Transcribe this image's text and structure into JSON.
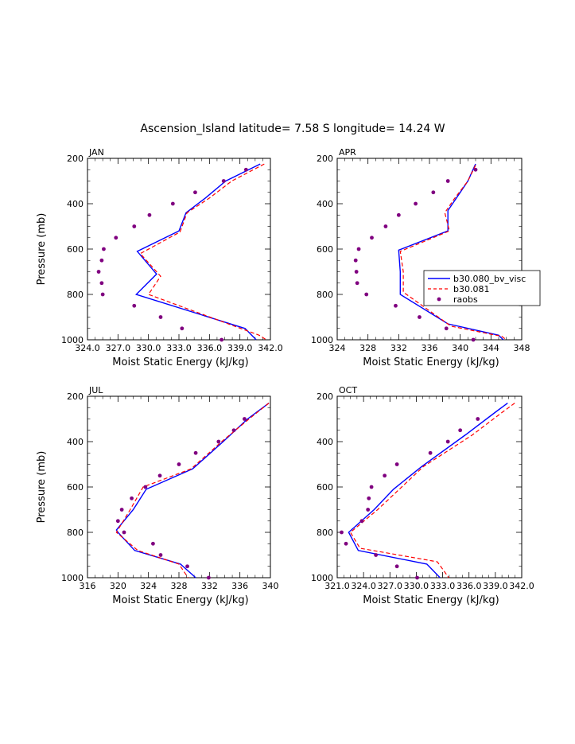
{
  "figure_title": "Ascension_Island  latitude= 7.58 S longitude= 14.24 W",
  "legend": [
    {
      "label": "b30.080_bv_visc",
      "color": "#0000ff",
      "style": "solid"
    },
    {
      "label": "b30.081",
      "color": "#ff0000",
      "style": "dashed"
    },
    {
      "label": "raobs",
      "color": "#800080",
      "style": "dot"
    }
  ],
  "chart_data": [
    {
      "type": "line",
      "title": "JAN",
      "xlabel": "Moist Static Energy (kJ/kg)",
      "ylabel": "Pressure (mb)",
      "xlim": [
        324.0,
        342.0
      ],
      "ylim": [
        1000,
        200
      ],
      "xticks": [
        "324.0",
        "327.0",
        "330.0",
        "333.0",
        "336.0",
        "339.0",
        "342.0"
      ],
      "yticks": [
        "200",
        "400",
        "600",
        "800",
        "1000"
      ],
      "series": [
        {
          "name": "b30.080_bv_visc",
          "pressure": [
            225,
            300,
            375,
            440,
            520,
            610,
            710,
            800,
            950,
            1000
          ],
          "values": [
            341.0,
            337.6,
            335.6,
            333.7,
            333.0,
            328.9,
            330.8,
            328.8,
            339.5,
            340.6
          ]
        },
        {
          "name": "b30.081",
          "pressure": [
            225,
            300,
            375,
            440,
            525,
            620,
            720,
            800,
            980,
            1000
          ],
          "values": [
            341.4,
            338.2,
            336.0,
            333.8,
            333.1,
            329.2,
            331.2,
            330.0,
            340.9,
            341.6
          ]
        },
        {
          "name": "raobs",
          "pressure": [
            250,
            300,
            350,
            400,
            450,
            500,
            550,
            600,
            650,
            700,
            750,
            800,
            850,
            900,
            950,
            1000
          ],
          "values": [
            339.6,
            337.4,
            334.6,
            332.4,
            330.1,
            328.6,
            326.8,
            325.6,
            325.4,
            325.1,
            325.4,
            325.5,
            328.6,
            331.2,
            333.3,
            337.2
          ]
        }
      ]
    },
    {
      "type": "line",
      "title": "APR",
      "xlabel": "Moist Static Energy (kJ/kg)",
      "ylabel": "",
      "xlim": [
        324,
        348
      ],
      "ylim": [
        1000,
        200
      ],
      "xticks": [
        "324",
        "328",
        "332",
        "336",
        "340",
        "344",
        "348"
      ],
      "yticks": [
        "200",
        "400",
        "600",
        "800",
        "1000"
      ],
      "series": [
        {
          "name": "b30.080_bv_visc",
          "pressure": [
            225,
            300,
            380,
            430,
            520,
            605,
            700,
            800,
            930,
            980,
            1000
          ],
          "values": [
            342.0,
            341.0,
            339.4,
            338.4,
            338.4,
            332.0,
            332.2,
            332.2,
            338.4,
            345.0,
            345.6
          ]
        },
        {
          "name": "b30.081",
          "pressure": [
            230,
            300,
            380,
            440,
            520,
            610,
            700,
            790,
            940,
            985,
            1000
          ],
          "values": [
            342.0,
            341.0,
            339.2,
            338.0,
            338.6,
            332.2,
            332.6,
            332.6,
            338.8,
            345.4,
            346.0
          ]
        },
        {
          "name": "raobs",
          "pressure": [
            250,
            300,
            350,
            400,
            450,
            500,
            550,
            600,
            650,
            700,
            750,
            800,
            850,
            900,
            950,
            1000
          ],
          "values": [
            342.0,
            338.4,
            336.5,
            334.2,
            332.0,
            330.3,
            328.5,
            326.8,
            326.4,
            326.5,
            326.6,
            327.8,
            331.6,
            334.7,
            338.2,
            341.7
          ]
        }
      ]
    },
    {
      "type": "line",
      "title": "JUL",
      "xlabel": "Moist Static Energy (kJ/kg)",
      "ylabel": "Pressure (mb)",
      "xlim": [
        316,
        340
      ],
      "ylim": [
        1000,
        200
      ],
      "xticks": [
        "316",
        "320",
        "324",
        "328",
        "332",
        "336",
        "340"
      ],
      "yticks": [
        "200",
        "400",
        "600",
        "800",
        "1000"
      ],
      "series": [
        {
          "name": "b30.080_bv_visc",
          "pressure": [
            230,
            300,
            400,
            520,
            610,
            700,
            790,
            800,
            880,
            940,
            1000
          ],
          "values": [
            339.8,
            337.0,
            333.8,
            329.8,
            323.7,
            322.0,
            319.8,
            320.0,
            322.2,
            328.2,
            330.2
          ]
        },
        {
          "name": "b30.081",
          "pressure": [
            230,
            300,
            400,
            520,
            600,
            700,
            800,
            880,
            940,
            1000
          ],
          "values": [
            339.8,
            337.2,
            333.6,
            329.6,
            323.3,
            321.6,
            319.8,
            322.6,
            328.0,
            329.2
          ]
        },
        {
          "name": "raobs",
          "pressure": [
            300,
            350,
            400,
            450,
            500,
            550,
            600,
            650,
            700,
            750,
            800,
            850,
            900,
            950,
            1000
          ],
          "values": [
            336.6,
            335.2,
            333.2,
            330.2,
            328.0,
            325.5,
            323.6,
            321.8,
            320.5,
            320.0,
            320.8,
            324.6,
            325.6,
            329.1,
            331.9
          ]
        }
      ]
    },
    {
      "type": "line",
      "title": "OCT",
      "xlabel": "Moist Static Energy (kJ/kg)",
      "ylabel": "",
      "xlim": [
        321.0,
        342.0
      ],
      "ylim": [
        1000,
        200
      ],
      "xticks": [
        "321.0",
        "324.0",
        "327.0",
        "330.0",
        "333.0",
        "336.0",
        "339.0",
        "342.0"
      ],
      "yticks": [
        "200",
        "400",
        "600",
        "800",
        "1000"
      ],
      "series": [
        {
          "name": "b30.080_bv_visc",
          "pressure": [
            230,
            270,
            370,
            510,
            610,
            700,
            800,
            880,
            940,
            1000
          ],
          "values": [
            340.4,
            339.0,
            335.6,
            330.6,
            327.4,
            325.2,
            322.3,
            323.4,
            331.2,
            332.7
          ]
        },
        {
          "name": "b30.081",
          "pressure": [
            230,
            270,
            370,
            510,
            620,
            700,
            800,
            870,
            930,
            1000
          ],
          "values": [
            341.2,
            339.8,
            336.4,
            330.8,
            327.8,
            325.6,
            322.5,
            323.6,
            332.4,
            333.7
          ]
        },
        {
          "name": "raobs",
          "pressure": [
            300,
            350,
            400,
            450,
            500,
            550,
            600,
            650,
            700,
            750,
            800,
            850,
            900,
            950,
            1000
          ],
          "values": [
            337.0,
            335.0,
            333.6,
            331.6,
            327.8,
            326.4,
            324.9,
            324.6,
            324.5,
            323.8,
            321.5,
            322.0,
            325.4,
            327.8,
            330.1
          ]
        }
      ]
    }
  ]
}
